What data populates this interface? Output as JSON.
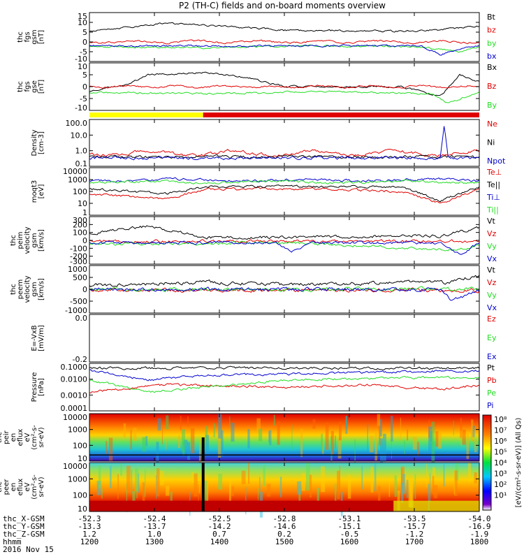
{
  "title": "P2 (TH-C) fields and on-board moments overview",
  "date_label": "2016 Nov 15",
  "colorbar_label": "[eV/(cm²-s-sr-eV)] (All Qs)",
  "colorbar_ticks": [
    "10⁸",
    "10⁷",
    "10⁶",
    "10⁵",
    "10⁴",
    "10³",
    "10²",
    "10¹"
  ],
  "colors": {
    "black": "#000000",
    "red": "#e00000",
    "green": "#22dd22",
    "blue": "#0000cc",
    "yellow": "#ffff00"
  },
  "time_axis": {
    "labels": [
      "1200",
      "1300",
      "1400",
      "1500",
      "1600",
      "1700",
      "1800"
    ],
    "rows": [
      {
        "name": "thc_X-GSM",
        "values": [
          "-52.3",
          "-52.4",
          "-52.5",
          "-52.8",
          "-53.1",
          "-53.5",
          "-54.0"
        ]
      },
      {
        "name": "thc_Y-GSM",
        "values": [
          "-13.3",
          "-13.7",
          "-14.2",
          "-14.6",
          "-15.1",
          "-15.7",
          "-16.9"
        ]
      },
      {
        "name": "thc_Z-GSM",
        "values": [
          "1.2",
          "1.0",
          "0.7",
          "0.2",
          "-0.5",
          "-1.2",
          "-1.9"
        ]
      },
      {
        "name": "hhmm",
        "values": [
          "1200",
          "1300",
          "1400",
          "1500",
          "1600",
          "1700",
          "1800"
        ]
      }
    ]
  },
  "mode_bar": {
    "yellow_end_hhmm": 1345
  },
  "chart_data": [
    {
      "type": "line",
      "id": "fgs_gsm",
      "ylabel": [
        "thc",
        "fgs",
        "gsm",
        "[nT]"
      ],
      "yticks": [
        "15",
        "10",
        "5",
        "0",
        "-5",
        "-10"
      ],
      "ylim": [
        -10,
        15
      ],
      "series": [
        {
          "name": "Bt",
          "color": "#000000"
        },
        {
          "name": "bz",
          "color": "#e00000"
        },
        {
          "name": "by",
          "color": "#22dd22"
        },
        {
          "name": "bx",
          "color": "#0000cc"
        }
      ]
    },
    {
      "type": "line",
      "id": "fgs_gse",
      "ylabel": [
        "thc",
        "fgs",
        "gse",
        "[nT]"
      ],
      "yticks": [
        "10",
        "5",
        "0",
        "-5",
        "-10"
      ],
      "ylim": [
        -14,
        12
      ],
      "series": [
        {
          "name": "Bx",
          "color": "#000000"
        },
        {
          "name": "Bz",
          "color": "#e00000"
        },
        {
          "name": "By",
          "color": "#22dd22"
        }
      ]
    },
    {
      "type": "line",
      "id": "density",
      "ylabel": [
        "Density",
        "[cm-3]"
      ],
      "yticks": [
        "100.0",
        "10.0",
        "1.0",
        "0.1"
      ],
      "scale": "log",
      "series": [
        {
          "name": "Ne",
          "color": "#e00000"
        },
        {
          "name": "Ni",
          "color": "#000000"
        },
        {
          "name": "Npot",
          "color": "#0000cc"
        }
      ]
    },
    {
      "type": "line",
      "id": "temperature",
      "ylabel": [
        "moqt3",
        "[eV]"
      ],
      "yticks": [
        "10000",
        "1000",
        "100",
        "10",
        "1"
      ],
      "scale": "log",
      "series": [
        {
          "name": "Te⊥",
          "color": "#e00000"
        },
        {
          "name": "Te||",
          "color": "#000000"
        },
        {
          "name": "Ti⊥",
          "color": "#0000cc"
        },
        {
          "name": "Ti||",
          "color": "#22dd22"
        }
      ]
    },
    {
      "type": "line",
      "id": "peim_velocity",
      "ylabel": [
        "thc",
        "peim",
        "velocity",
        "gsm",
        "[km/s]"
      ],
      "yticks": [
        "300",
        "200",
        "100",
        "0",
        "-100",
        "-200",
        "-300"
      ],
      "ylim": [
        -300,
        300
      ],
      "series": [
        {
          "name": "Vt",
          "color": "#000000"
        },
        {
          "name": "Vz",
          "color": "#e00000"
        },
        {
          "name": "Vy",
          "color": "#22dd22"
        },
        {
          "name": "Vx",
          "color": "#0000cc"
        }
      ]
    },
    {
      "type": "line",
      "id": "peem_velocity",
      "ylabel": [
        "thc",
        "peem",
        "velocity",
        "gsm",
        "[km/s]"
      ],
      "yticks": [
        "1000",
        "500",
        "0",
        "-500",
        "-1000"
      ],
      "ylim": [
        -1000,
        1000
      ],
      "series": [
        {
          "name": "Vt",
          "color": "#000000"
        },
        {
          "name": "Vz",
          "color": "#e00000"
        },
        {
          "name": "Vy",
          "color": "#22dd22"
        },
        {
          "name": "Vx",
          "color": "#0000cc"
        }
      ]
    },
    {
      "type": "line",
      "id": "efield",
      "ylabel": [
        "E=-VxB",
        "[mV/m]"
      ],
      "yticks": [
        "0.0",
        "-0.2"
      ],
      "series": [
        {
          "name": "Ez",
          "color": "#e00000"
        },
        {
          "name": "Ey",
          "color": "#22dd22"
        },
        {
          "name": "Ex",
          "color": "#0000cc"
        }
      ]
    },
    {
      "type": "line",
      "id": "pressure",
      "ylabel": [
        "Pressure",
        "[nPa]"
      ],
      "yticks": [
        "0.1000",
        "0.0100",
        "0.0010",
        "0.0001"
      ],
      "scale": "log",
      "series": [
        {
          "name": "Pt",
          "color": "#000000"
        },
        {
          "name": "Pb",
          "color": "#e00000"
        },
        {
          "name": "Pe",
          "color": "#22dd22"
        },
        {
          "name": "Pi",
          "color": "#0000cc"
        }
      ]
    },
    {
      "type": "heatmap",
      "id": "peir",
      "ylabel": [
        "thc",
        "peir",
        "en",
        "eflux",
        "eV",
        "(cm²-s-",
        "sr-eV)"
      ],
      "yticks": [
        "10000",
        "1000",
        "100",
        "10"
      ],
      "scale": "log"
    },
    {
      "type": "heatmap",
      "id": "peer",
      "ylabel": [
        "thc",
        "peer",
        "en",
        "eflux",
        "eV",
        "(cm²-s-",
        "sr-eV)"
      ],
      "yticks": [
        "10000",
        "1000",
        "100",
        "10"
      ],
      "scale": "log"
    }
  ]
}
